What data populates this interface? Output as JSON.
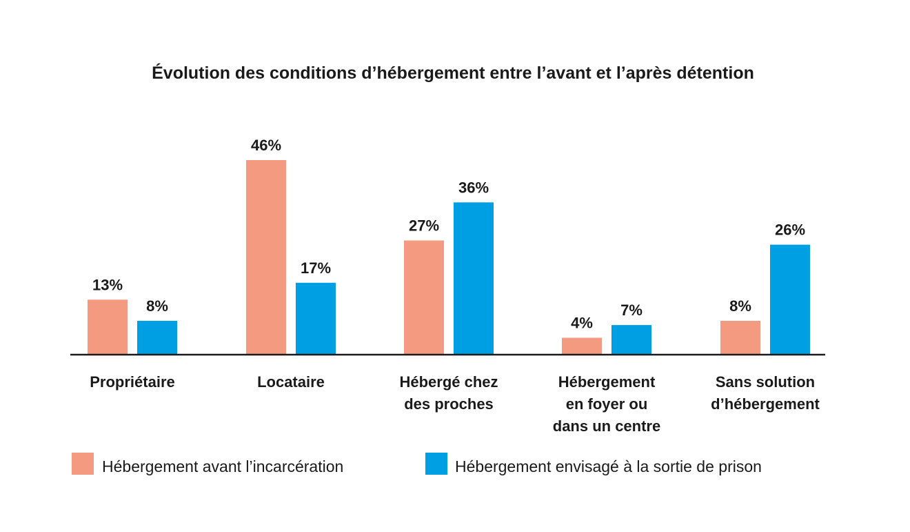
{
  "chart_data": {
    "type": "bar",
    "title": "Évolution des conditions d’hébergement entre l’avant et l’après détention",
    "categories": [
      [
        "Propriétaire"
      ],
      [
        "Locataire"
      ],
      [
        "Hébergé chez",
        "des proches"
      ],
      [
        "Hébergement",
        "en foyer ou",
        "dans un centre"
      ],
      [
        "Sans solution",
        "d’hébergement"
      ]
    ],
    "series": [
      {
        "name": "Hébergement avant l’incarcération",
        "color": "#f49a80",
        "values": [
          13,
          46,
          27,
          4,
          8
        ],
        "labels": [
          "13%",
          "46%",
          "27%",
          "4%",
          "8%"
        ]
      },
      {
        "name": "Hébergement envisagé à la sortie de prison",
        "color": "#009fe3",
        "values": [
          8,
          17,
          36,
          7,
          26
        ],
        "labels": [
          "8%",
          "17%",
          "36%",
          "7%",
          "26%"
        ]
      }
    ],
    "ylim": [
      0,
      50
    ],
    "grid": false,
    "legend": "bottom-left",
    "axis_color": "#1a1a1a"
  }
}
